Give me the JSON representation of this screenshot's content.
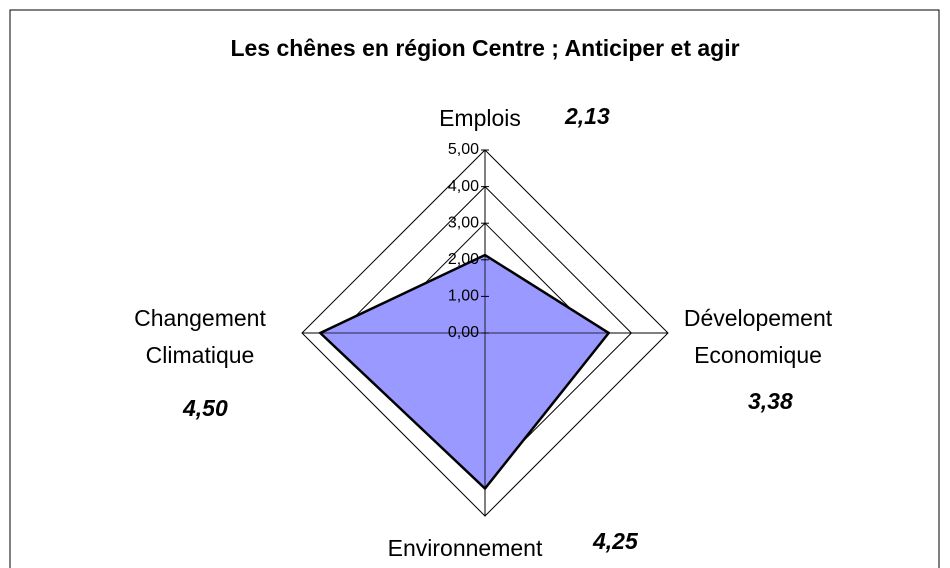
{
  "chart_data": {
    "type": "radar",
    "title": "Les chênes en région Centre ; Anticiper et agir",
    "categories": [
      "Emplois",
      "Dévelopement Economique",
      "Environnement",
      "Changement Climatique"
    ],
    "values": [
      2.13,
      3.38,
      4.25,
      4.5
    ],
    "value_labels": [
      "2,13",
      "3,38",
      "4,25",
      "4,50"
    ],
    "color": "#9999ff",
    "ylim": [
      0,
      5
    ],
    "yticks": [
      {
        "value": 0,
        "label": "0,00"
      },
      {
        "value": 1,
        "label": "1,00"
      },
      {
        "value": 2,
        "label": "2,00"
      },
      {
        "value": 3,
        "label": "3,00"
      },
      {
        "value": 4,
        "label": "4,00"
      },
      {
        "value": 5,
        "label": "5,00"
      }
    ],
    "grid": true
  }
}
